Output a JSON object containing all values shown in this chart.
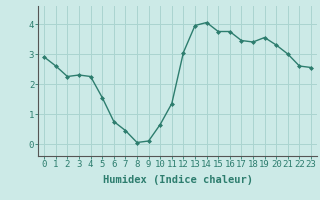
{
  "x": [
    0,
    1,
    2,
    3,
    4,
    5,
    6,
    7,
    8,
    9,
    10,
    11,
    12,
    13,
    14,
    15,
    16,
    17,
    18,
    19,
    20,
    21,
    22,
    23
  ],
  "y": [
    2.9,
    2.6,
    2.25,
    2.3,
    2.25,
    1.55,
    0.75,
    0.45,
    0.05,
    0.1,
    0.65,
    1.35,
    3.05,
    3.95,
    4.05,
    3.75,
    3.75,
    3.45,
    3.4,
    3.55,
    3.3,
    3.0,
    2.6,
    2.55
  ],
  "line_color": "#2d7d6e",
  "marker": "D",
  "marker_size": 2.0,
  "bg_color": "#cceae7",
  "grid_color": "#aad4d0",
  "xlabel": "Humidex (Indice chaleur)",
  "xlim": [
    -0.5,
    23.5
  ],
  "ylim": [
    -0.4,
    4.6
  ],
  "yticks": [
    0,
    1,
    2,
    3,
    4
  ],
  "xticks": [
    0,
    1,
    2,
    3,
    4,
    5,
    6,
    7,
    8,
    9,
    10,
    11,
    12,
    13,
    14,
    15,
    16,
    17,
    18,
    19,
    20,
    21,
    22,
    23
  ],
  "xlabel_fontsize": 7.5,
  "tick_fontsize": 6.5,
  "line_width": 1.0
}
